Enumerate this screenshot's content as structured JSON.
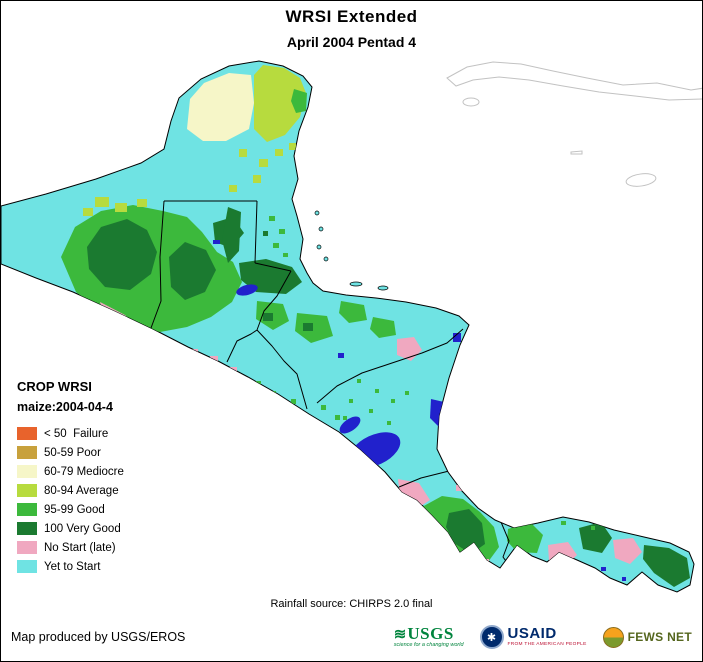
{
  "title": "WRSI Extended",
  "subtitle": "April 2004 Pentad 4",
  "legend": {
    "heading": "CROP WRSI",
    "subheading": "maize:2004-04-4",
    "items": [
      {
        "key": "failure",
        "label": "< 50  Failure",
        "color": "#E8632C"
      },
      {
        "key": "poor",
        "label": "50-59 Poor",
        "color": "#C8A13C"
      },
      {
        "key": "mediocre",
        "label": "60-79 Mediocre",
        "color": "#F6F6C8"
      },
      {
        "key": "average",
        "label": "80-94 Average",
        "color": "#B7DB3E"
      },
      {
        "key": "good",
        "label": "95-99 Good",
        "color": "#3CB93C"
      },
      {
        "key": "verygood",
        "label": "100 Very Good",
        "color": "#1B7A30"
      },
      {
        "key": "nostart",
        "label": "No Start (late)",
        "color": "#F0A8C0"
      },
      {
        "key": "yetstart",
        "label": "Yet to Start",
        "color": "#6FE3E3"
      }
    ]
  },
  "map": {
    "water_color": "#2121CC",
    "source_note": "Rainfall source: CHIRPS 2.0 final"
  },
  "footer": {
    "credit": "Map produced by USGS/EROS",
    "logos": {
      "usgs": {
        "name": "USGS",
        "tagline": "science for a changing world"
      },
      "usaid": {
        "name": "USAID",
        "tagline": "FROM THE AMERICAN PEOPLE"
      },
      "fewsnet": {
        "name": "FEWS NET"
      }
    }
  }
}
